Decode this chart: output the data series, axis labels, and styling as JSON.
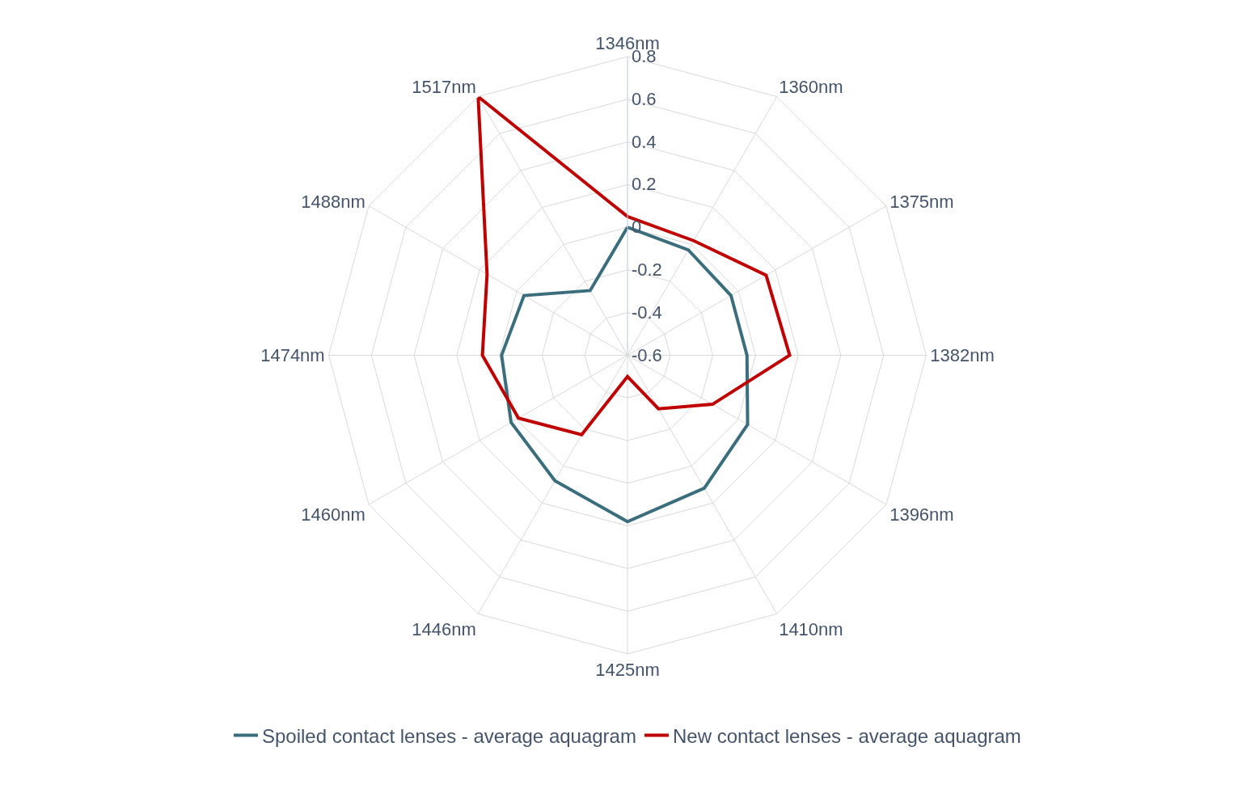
{
  "chart_data": {
    "type": "radar",
    "categories": [
      "1346nm",
      "1360nm",
      "1375nm",
      "1382nm",
      "1396nm",
      "1410nm",
      "1425nm",
      "1446nm",
      "1460nm",
      "1474nm",
      "1488nm",
      "1517nm"
    ],
    "series": [
      {
        "name": "Spoiled contact lenses - average aquagram",
        "color": "#3b6e7d",
        "values": [
          0.0,
          -0.03,
          -0.04,
          -0.04,
          0.05,
          0.12,
          0.18,
          0.08,
          0.03,
          -0.01,
          -0.04,
          -0.25
        ]
      },
      {
        "name": "New contact lenses - average aquagram",
        "color": "#c00000",
        "values": [
          0.05,
          0.02,
          0.15,
          0.16,
          -0.14,
          -0.31,
          -0.5,
          -0.17,
          -0.01,
          0.08,
          0.16,
          0.8
        ]
      }
    ],
    "ylim": [
      -0.6,
      0.8
    ],
    "yticks": [
      -0.6,
      -0.4,
      -0.2,
      0,
      0.2,
      0.4,
      0.6,
      0.8
    ],
    "grid": true,
    "legend": "bottom",
    "marker": "none",
    "line_style": "solid"
  }
}
